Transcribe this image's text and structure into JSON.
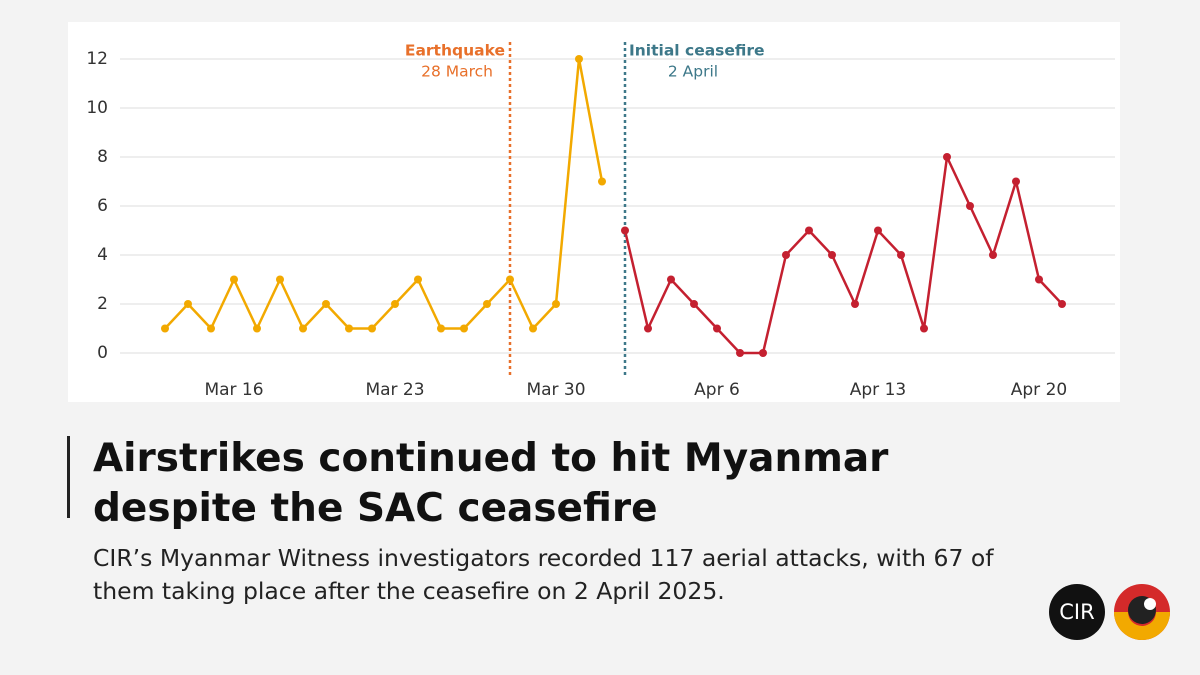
{
  "chart_data": {
    "type": "line",
    "categories": [
      null,
      null,
      null,
      "Mar 16",
      null,
      null,
      null,
      null,
      null,
      null,
      "Mar 23",
      null,
      null,
      null,
      null,
      null,
      null,
      "Mar 30",
      null,
      null,
      null,
      null,
      null,
      null,
      "Apr 6",
      null,
      null,
      null,
      null,
      null,
      null,
      "Apr 13",
      null,
      null,
      null,
      null,
      null,
      null,
      "Apr 20",
      null
    ],
    "series": [
      {
        "color": "#f2a900",
        "values": [
          1,
          2,
          1,
          3,
          1,
          3,
          1,
          2,
          1,
          1,
          2,
          3,
          1,
          1,
          2,
          3,
          1,
          2,
          12,
          7,
          null,
          null,
          null,
          null,
          null,
          null,
          null,
          null,
          null,
          null,
          null,
          null,
          null,
          null,
          null,
          null,
          null,
          null,
          null,
          null
        ]
      },
      {
        "color": "#c42030",
        "values": [
          null,
          null,
          null,
          null,
          null,
          null,
          null,
          null,
          null,
          null,
          null,
          null,
          null,
          null,
          null,
          null,
          null,
          null,
          null,
          null,
          5,
          1,
          3,
          2,
          1,
          0,
          0,
          4,
          5,
          4,
          2,
          5,
          4,
          1,
          8,
          6,
          4,
          7,
          3,
          2
        ]
      }
    ],
    "ylim": [
      0,
      12
    ],
    "yticks": [
      0,
      2,
      4,
      6,
      8,
      10,
      12
    ],
    "grid": true,
    "annotations": [
      {
        "text": "Earthquake",
        "subtext": "28 March",
        "x": 15,
        "color": "#e8702a"
      },
      {
        "text": "Initial ceasefire",
        "subtext": "2 April",
        "x": 20,
        "color": "#3d7889"
      }
    ]
  },
  "headline": "Airstrikes continued to hit Myanmar despite the SAC ceasefire",
  "description": "CIR’s Myanmar Witness investigators recorded 117 aerial attacks, with 67 of them taking place after the ceasefire on 2 April 2025.",
  "logo": "CIR"
}
